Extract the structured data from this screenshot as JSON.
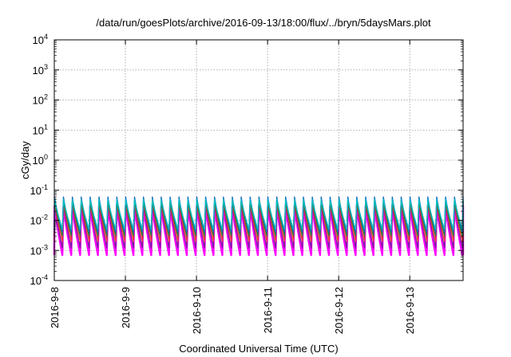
{
  "chart_data": {
    "type": "line",
    "title": "/data/run/goesPlots/archive/2016-09-13/18:00/flux/../bryn/5daysMars.plot",
    "xlabel": "Coordinated Universal Time (UTC)",
    "ylabel": "cGy/day",
    "y_scale": "log",
    "ylim": [
      0.0001,
      10000
    ],
    "y_ticks": [
      {
        "mantissa": "10",
        "exp": "-4"
      },
      {
        "mantissa": "10",
        "exp": "-3"
      },
      {
        "mantissa": "10",
        "exp": "-2"
      },
      {
        "mantissa": "10",
        "exp": "-1"
      },
      {
        "mantissa": "10",
        "exp": "0"
      },
      {
        "mantissa": "10",
        "exp": "1"
      },
      {
        "mantissa": "10",
        "exp": "2"
      },
      {
        "mantissa": "10",
        "exp": "3"
      },
      {
        "mantissa": "10",
        "exp": "4"
      }
    ],
    "x_ticks": [
      "2016-9-8",
      "2016-9-9",
      "2016-9-10",
      "2016-9-11",
      "2016-9-12",
      "2016-9-13"
    ],
    "xlim": [
      "2016-09-08 00:00",
      "2016-09-13 18:00"
    ],
    "grid": true,
    "sawtooth_cycles": 46,
    "series": [
      {
        "color": "#ff00ff",
        "peak": 0.03,
        "trough": 0.0007
      },
      {
        "color": "#7b1fa2",
        "peak": 0.035,
        "trough": 0.0012
      },
      {
        "color": "#ff3333",
        "peak": 0.04,
        "trough": 0.002
      },
      {
        "color": "#2e7d32",
        "peak": 0.045,
        "trough": 0.003
      },
      {
        "color": "#1565c0",
        "peak": 0.06,
        "trough": 0.004
      },
      {
        "color": "#00c0c0",
        "peak": 0.05,
        "trough": 0.005
      }
    ]
  }
}
